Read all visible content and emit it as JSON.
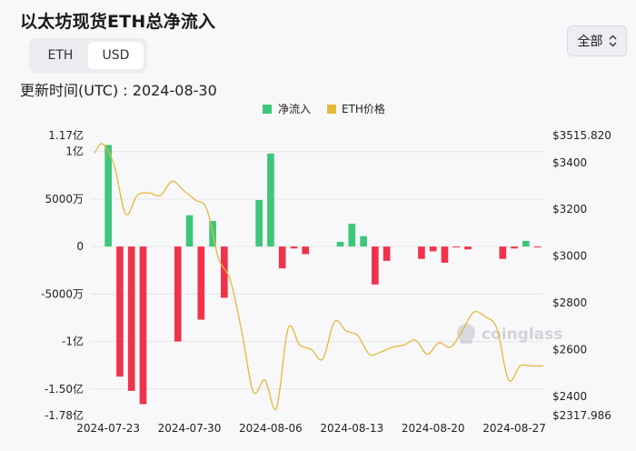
{
  "header": {
    "title": "以太坊现货ETH总净流入",
    "updated": "更新时间(UTC) : 2024-08-30"
  },
  "unit_toggle": {
    "options": [
      "ETH",
      "USD"
    ],
    "selected": "USD"
  },
  "range_select": {
    "value": "全部"
  },
  "watermark": "coinglass",
  "colors": {
    "positive": "#3ec77a",
    "negative": "#f0334b",
    "price_line": "#e2b93b",
    "grid": "#e6e6e6"
  },
  "chart_data": {
    "type": "bar",
    "legend": [
      "净流入",
      "ETH价格"
    ],
    "legend_position": "top-center",
    "grid": true,
    "x_tick_labels": [
      "2024-07-23",
      "2024-07-30",
      "2024-08-06",
      "2024-08-13",
      "2024-08-20",
      "2024-08-27"
    ],
    "y_left": {
      "tick_labels": [
        "1.17亿",
        "1亿",
        "5000万",
        "0",
        "-5000万",
        "-1亿",
        "-1.50亿",
        "-1.78亿"
      ],
      "range": [
        -178000000,
        117000000
      ]
    },
    "y_right": {
      "tick_labels": [
        "$3515.820",
        "$3400",
        "$3200",
        "$3000",
        "$2800",
        "$2600",
        "$2400",
        "$2317.986"
      ],
      "range": [
        2317.986,
        3515.82
      ]
    },
    "categories": [
      "2024-07-23",
      "2024-07-24",
      "2024-07-25",
      "2024-07-26",
      "2024-07-29",
      "2024-07-30",
      "2024-07-31",
      "2024-08-01",
      "2024-08-02",
      "2024-08-05",
      "2024-08-06",
      "2024-08-07",
      "2024-08-08",
      "2024-08-09",
      "2024-08-12",
      "2024-08-13",
      "2024-08-14",
      "2024-08-15",
      "2024-08-16",
      "2024-08-19",
      "2024-08-20",
      "2024-08-21",
      "2024-08-22",
      "2024-08-23",
      "2024-08-26",
      "2024-08-27",
      "2024-08-28",
      "2024-08-29"
    ],
    "series": [
      {
        "name": "净流入",
        "values": [
          107000000,
          -137000000,
          -152000000,
          -166000000,
          -100000000,
          33000000,
          -77000000,
          27000000,
          -54000000,
          49000000,
          98000000,
          -23000000,
          -2000000,
          -8000000,
          5000000,
          24000000,
          11000000,
          -40000000,
          -15000000,
          -13000000,
          -5000000,
          -17000000,
          -1000000,
          -3000000,
          -13000000,
          -2000000,
          6000000,
          -1000000
        ]
      },
      {
        "name": "ETH价格",
        "x": [
          "2024-07-22",
          "2024-07-23",
          "2024-07-24",
          "2024-07-25",
          "2024-07-26",
          "2024-07-27",
          "2024-07-28",
          "2024-07-29",
          "2024-07-30",
          "2024-07-31",
          "2024-08-01",
          "2024-08-02",
          "2024-08-03",
          "2024-08-04",
          "2024-08-05",
          "2024-08-06",
          "2024-08-07",
          "2024-08-08",
          "2024-08-09",
          "2024-08-10",
          "2024-08-11",
          "2024-08-12",
          "2024-08-13",
          "2024-08-14",
          "2024-08-15",
          "2024-08-16",
          "2024-08-17",
          "2024-08-18",
          "2024-08-19",
          "2024-08-20",
          "2024-08-21",
          "2024-08-22",
          "2024-08-23",
          "2024-08-24",
          "2024-08-25",
          "2024-08-26",
          "2024-08-27",
          "2024-08-28",
          "2024-08-29",
          "2024-08-30"
        ],
        "values": [
          3440,
          3480,
          3390,
          3180,
          3260,
          3270,
          3260,
          3320,
          3280,
          3240,
          3200,
          2990,
          2900,
          2680,
          2420,
          2470,
          2350,
          2690,
          2620,
          2600,
          2560,
          2720,
          2680,
          2660,
          2580,
          2590,
          2610,
          2620,
          2640,
          2580,
          2630,
          2610,
          2680,
          2760,
          2740,
          2690,
          2470,
          2530,
          2530,
          2530
        ]
      }
    ]
  }
}
